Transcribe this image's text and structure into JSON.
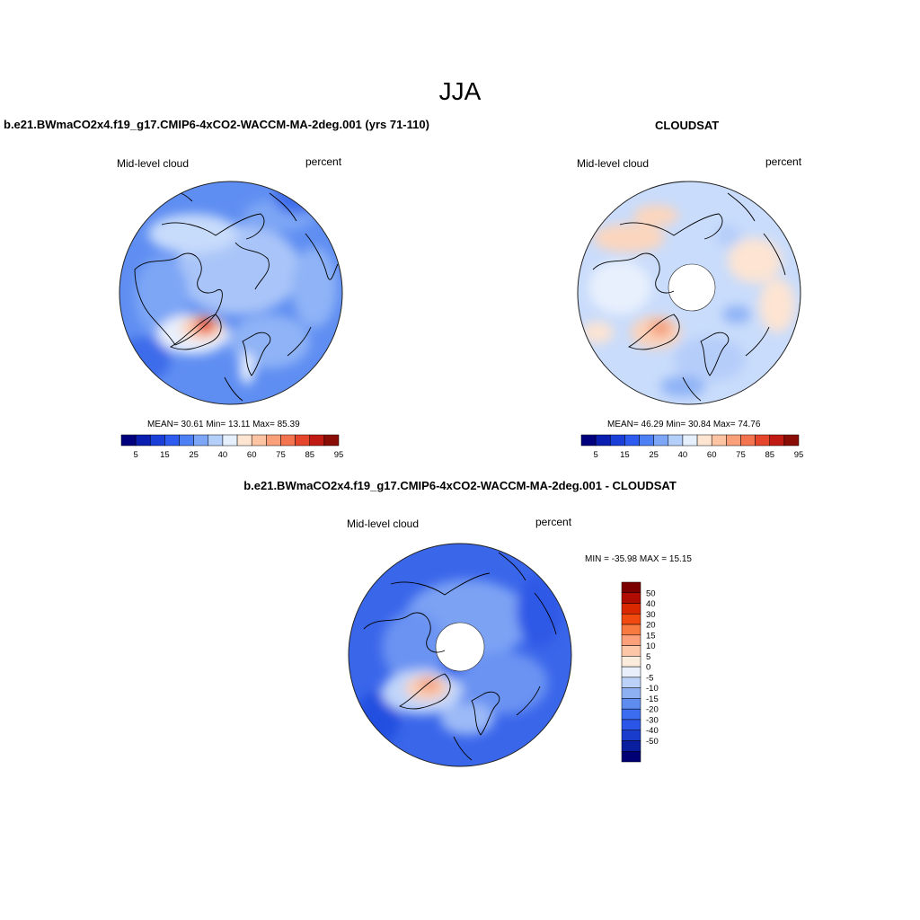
{
  "title": "JJA",
  "panels": [
    {
      "title": "b.e21.BWmaCO2x4.f19_g17.CMIP6-4xCO2-WACCM-MA-2deg.001 (yrs 71-110)",
      "left_label": "Mid-level cloud",
      "right_label": "percent",
      "stats": "MEAN=  30.61  Min=  13.11  Max=  85.39"
    },
    {
      "title": "CLOUDSAT",
      "left_label": "Mid-level cloud",
      "right_label": "percent",
      "stats": "MEAN=  46.29  Min=  30.84  Max=  74.76"
    },
    {
      "title": "b.e21.BWmaCO2x4.f19_g17.CMIP6-4xCO2-WACCM-MA-2deg.001 - CLOUDSAT",
      "left_label": "Mid-level cloud",
      "right_label": "percent",
      "stats": "MIN = -35.98 MAX =  15.15"
    }
  ],
  "colorbar_abs": {
    "colors": [
      "#00007f",
      "#0a1fb0",
      "#1a3fd9",
      "#2e5cf0",
      "#4d7ff5",
      "#7da6f7",
      "#b3cffa",
      "#e6f0fc",
      "#fde5d2",
      "#fcc4a3",
      "#f9a07a",
      "#f57450",
      "#e5452b",
      "#c01a12",
      "#8a0c06"
    ],
    "labels": [
      "5",
      "15",
      "25",
      "40",
      "60",
      "75",
      "85",
      "95"
    ]
  },
  "colorbar_diff": {
    "colors": [
      "#7d0000",
      "#b00d00",
      "#d92800",
      "#f04a10",
      "#f87a40",
      "#fba07a",
      "#fdc6a6",
      "#fdebdc",
      "#eaf0fb",
      "#bcd1f7",
      "#8db0f2",
      "#5e8cef",
      "#3c6df0",
      "#2a55e8",
      "#1a3ccc",
      "#0a1fa0",
      "#000075"
    ],
    "labels": [
      "50",
      "40",
      "30",
      "20",
      "15",
      "10",
      "5",
      "0",
      "-5",
      "-10",
      "-15",
      "-20",
      "-30",
      "-40",
      "-50"
    ]
  }
}
